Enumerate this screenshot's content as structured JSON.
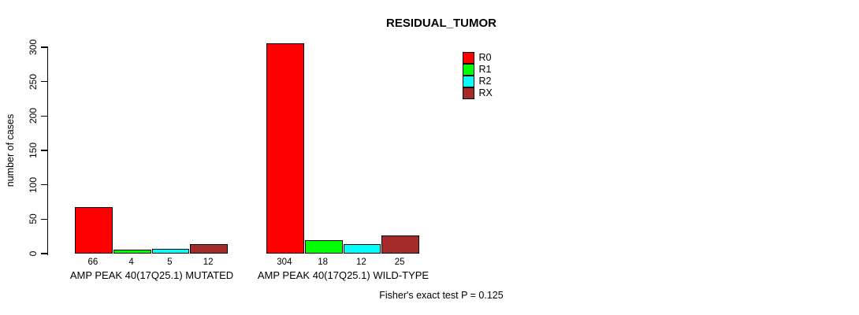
{
  "chart_data": {
    "type": "bar",
    "title": "RESIDUAL_TUMOR",
    "xlabel": "",
    "ylabel": "number of cases",
    "ylim": [
      0,
      300
    ],
    "yticks": [
      0,
      50,
      100,
      150,
      200,
      250,
      300
    ],
    "categories": [
      "AMP PEAK 40(17Q25.1) MUTATED",
      "AMP PEAK 40(17Q25.1) WILD-TYPE"
    ],
    "series": [
      {
        "name": "R0",
        "color": "#FF0000",
        "values": [
          66,
          304
        ]
      },
      {
        "name": "R1",
        "color": "#00FF00",
        "values": [
          4,
          18
        ]
      },
      {
        "name": "R2",
        "color": "#00FFFF",
        "values": [
          5,
          12
        ]
      },
      {
        "name": "RX",
        "color": "#A52A2A",
        "values": [
          12,
          25
        ]
      }
    ],
    "bar_value_labels": [
      [
        "66",
        "4",
        "5",
        "12"
      ],
      [
        "304",
        "18",
        "12",
        "25"
      ]
    ],
    "legend_position": "top-right-inside",
    "grid": false,
    "background": "#ffffff"
  },
  "annotation": "Fisher's exact test P = 0.125"
}
